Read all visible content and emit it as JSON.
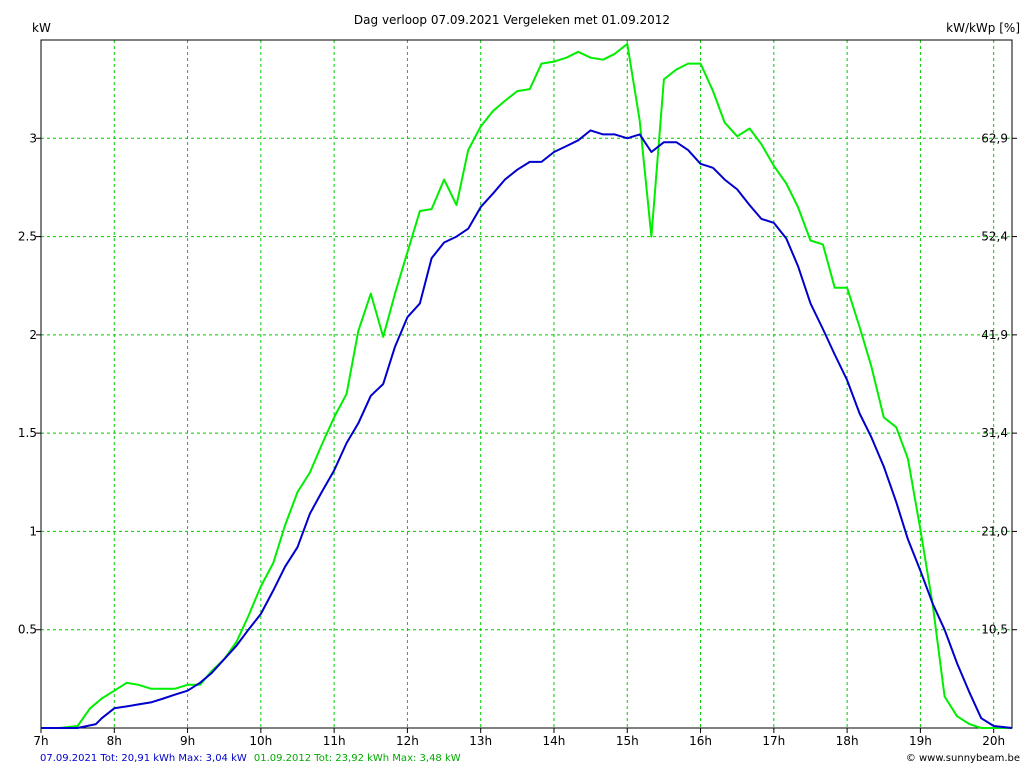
{
  "chart_data": {
    "type": "line",
    "title": "Dag  verloop 07.09.2021   Vergeleken met 01.09.2012",
    "ylabel_left": "kW",
    "ylabel_right": "kW/kWp [%]",
    "xlim": [
      7,
      20.25
    ],
    "ylim": [
      0,
      3.5
    ],
    "x_ticks": [
      7,
      8,
      9,
      10,
      11,
      12,
      13,
      14,
      15,
      16,
      17,
      18,
      19,
      20
    ],
    "x_tick_labels": [
      "7h",
      "8h",
      "9h",
      "10h",
      "11h",
      "12h",
      "13h",
      "14h",
      "15h",
      "16h",
      "17h",
      "18h",
      "19h",
      "20h"
    ],
    "y_ticks": [
      0.5,
      1,
      1.5,
      2,
      2.5,
      3
    ],
    "y_tick_labels": [
      "0.5",
      "1",
      "1.5",
      "2",
      "2.5",
      "3"
    ],
    "y_right_tick_labels": [
      "10,5",
      "21,0",
      "31,4",
      "41,9",
      "52,4",
      "62,9"
    ],
    "grid": true,
    "colors": {
      "series_2021": "#0000cc",
      "series_2012": "#00ee00",
      "grid": "#00cc00",
      "axis": "#000000"
    },
    "series": [
      {
        "name": "07.09.2021",
        "color": "#0000cc",
        "x": [
          7.0,
          7.25,
          7.5,
          7.75,
          7.83,
          8.0,
          8.17,
          8.33,
          8.5,
          8.67,
          8.83,
          9.0,
          9.17,
          9.33,
          9.5,
          9.67,
          9.83,
          10.0,
          10.17,
          10.33,
          10.5,
          10.67,
          10.83,
          11.0,
          11.17,
          11.33,
          11.5,
          11.67,
          11.83,
          12.0,
          12.17,
          12.33,
          12.5,
          12.67,
          12.83,
          13.0,
          13.17,
          13.33,
          13.5,
          13.67,
          13.83,
          14.0,
          14.17,
          14.33,
          14.5,
          14.67,
          14.83,
          15.0,
          15.17,
          15.33,
          15.5,
          15.67,
          15.83,
          16.0,
          16.17,
          16.33,
          16.5,
          16.67,
          16.83,
          17.0,
          17.17,
          17.33,
          17.5,
          17.67,
          17.83,
          18.0,
          18.17,
          18.33,
          18.5,
          18.67,
          18.83,
          19.0,
          19.17,
          19.33,
          19.5,
          19.67,
          19.83,
          20.0,
          20.25
        ],
        "y": [
          0.0,
          0.0,
          0.0,
          0.02,
          0.05,
          0.1,
          0.11,
          0.12,
          0.13,
          0.15,
          0.17,
          0.19,
          0.23,
          0.28,
          0.35,
          0.42,
          0.5,
          0.58,
          0.7,
          0.82,
          0.92,
          1.09,
          1.2,
          1.31,
          1.45,
          1.55,
          1.69,
          1.75,
          1.94,
          2.09,
          2.16,
          2.39,
          2.47,
          2.5,
          2.54,
          2.65,
          2.72,
          2.79,
          2.84,
          2.88,
          2.88,
          2.93,
          2.96,
          2.99,
          3.04,
          3.02,
          3.02,
          3.0,
          3.02,
          2.93,
          2.98,
          2.98,
          2.94,
          2.87,
          2.85,
          2.79,
          2.74,
          2.66,
          2.59,
          2.57,
          2.49,
          2.35,
          2.16,
          2.03,
          1.9,
          1.77,
          1.6,
          1.48,
          1.33,
          1.15,
          0.96,
          0.8,
          0.63,
          0.5,
          0.33,
          0.18,
          0.05,
          0.01,
          0.0
        ]
      },
      {
        "name": "01.09.2012",
        "color": "#00ee00",
        "x": [
          7.0,
          7.25,
          7.5,
          7.67,
          7.83,
          8.0,
          8.17,
          8.33,
          8.5,
          8.67,
          8.83,
          9.0,
          9.17,
          9.33,
          9.5,
          9.67,
          9.83,
          10.0,
          10.17,
          10.33,
          10.5,
          10.67,
          10.83,
          11.0,
          11.17,
          11.33,
          11.5,
          11.67,
          11.83,
          12.0,
          12.17,
          12.33,
          12.5,
          12.67,
          12.83,
          13.0,
          13.17,
          13.33,
          13.5,
          13.67,
          13.83,
          14.0,
          14.17,
          14.33,
          14.5,
          14.67,
          14.83,
          15.0,
          15.17,
          15.33,
          15.5,
          15.67,
          15.83,
          16.0,
          16.17,
          16.33,
          16.5,
          16.67,
          16.83,
          17.0,
          17.17,
          17.33,
          17.5,
          17.67,
          17.83,
          18.0,
          18.17,
          18.33,
          18.5,
          18.67,
          18.83,
          19.0,
          19.17,
          19.33,
          19.5,
          19.67,
          19.83,
          20.0,
          20.25
        ],
        "y": [
          0.0,
          0.0,
          0.01,
          0.1,
          0.15,
          0.19,
          0.23,
          0.22,
          0.2,
          0.2,
          0.2,
          0.22,
          0.22,
          0.29,
          0.35,
          0.44,
          0.57,
          0.72,
          0.84,
          1.03,
          1.2,
          1.3,
          1.44,
          1.58,
          1.7,
          2.02,
          2.21,
          1.99,
          2.21,
          2.42,
          2.63,
          2.64,
          2.79,
          2.66,
          2.94,
          3.06,
          3.14,
          3.19,
          3.24,
          3.25,
          3.38,
          3.39,
          3.41,
          3.44,
          3.41,
          3.4,
          3.43,
          3.48,
          3.09,
          2.5,
          3.3,
          3.35,
          3.38,
          3.38,
          3.24,
          3.08,
          3.01,
          3.05,
          2.97,
          2.86,
          2.77,
          2.65,
          2.48,
          2.46,
          2.24,
          2.24,
          2.04,
          1.84,
          1.58,
          1.53,
          1.37,
          1.01,
          0.62,
          0.16,
          0.06,
          0.02,
          0.0,
          0.0,
          0.0
        ]
      }
    ]
  },
  "footer": {
    "series1": "07.09.2021 Tot: 20,91 kWh Max: 3,04 kW",
    "series2": "01.09.2012 Tot: 23,92 kWh Max: 3,48 kW",
    "credit": "© www.sunnybeam.be"
  }
}
